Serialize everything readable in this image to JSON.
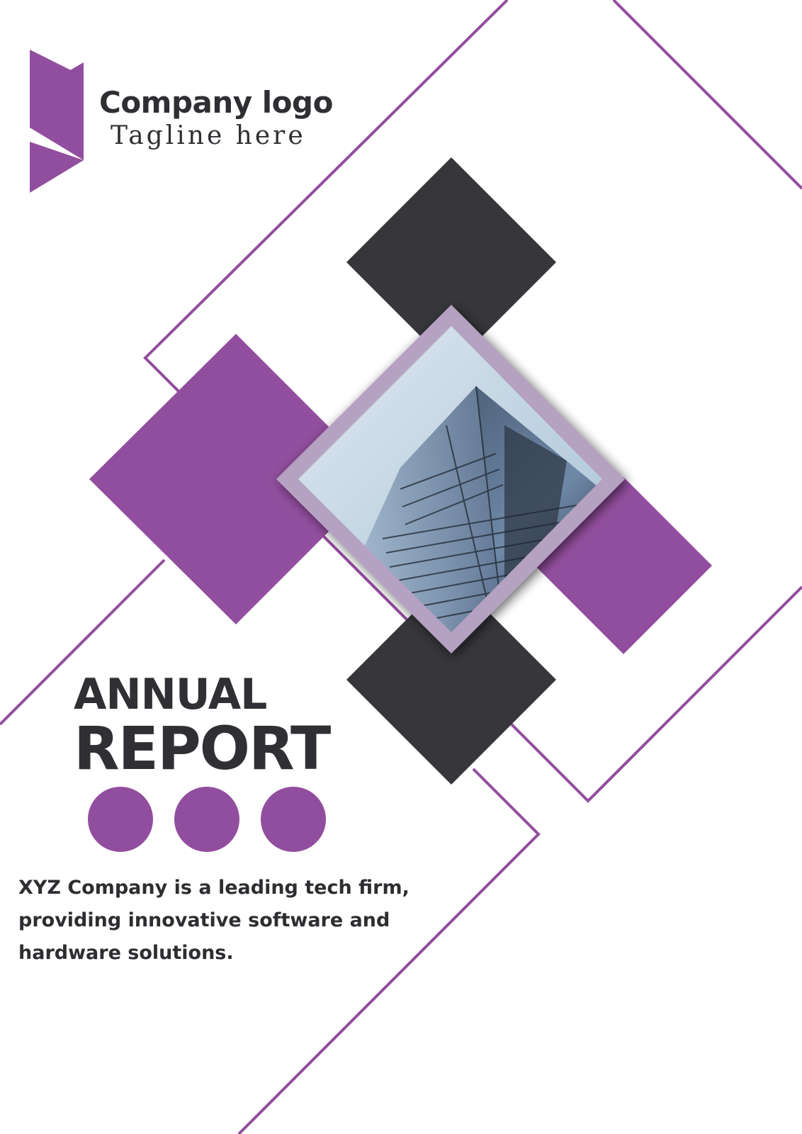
{
  "brand": {
    "logo_name": "Company logo",
    "tagline": "Tagline here"
  },
  "title": {
    "line1": "ANNUAL",
    "line2": "REPORT"
  },
  "description": "XYZ Company is a leading tech firm, providing innovative software and hardware solutions.",
  "decorations": {
    "dot_count": 3,
    "photo_subject": "glass skyscraper viewed from below"
  },
  "colors": {
    "accent_purple": "#924e9e",
    "dark_gray": "#37373b",
    "frame_lilac": "#b5a1c1",
    "text_dark": "#2f2f33",
    "background": "#ffffff"
  }
}
